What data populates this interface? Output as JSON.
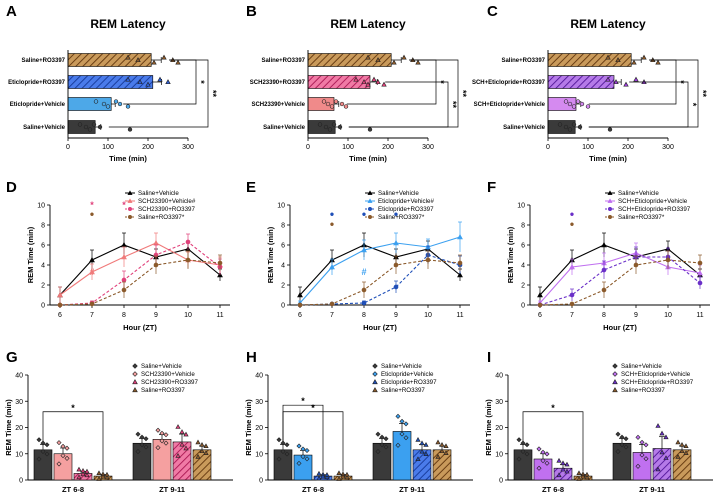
{
  "panel_letters": [
    "A",
    "B",
    "C",
    "D",
    "E",
    "F",
    "G",
    "H",
    "I"
  ],
  "chart_data": [
    {
      "panel": "A",
      "type": "bar",
      "orientation": "horizontal",
      "title": "REM Latency",
      "xlabel": "Time (min)",
      "xlim": [
        0,
        300
      ],
      "xticks": [
        0,
        100,
        200,
        300
      ],
      "categories": [
        "Saline+RO3397",
        "Eticlopride+RO3397",
        "Eticlopride+Vehicle",
        "Saline+Vehicle"
      ],
      "values": [
        208,
        212,
        108,
        68
      ],
      "errors": [
        25,
        22,
        10,
        14
      ],
      "colors": [
        "#8B5A2B",
        "#2E5FD8",
        "#4DA8E8",
        "#3a3a3a"
      ],
      "hatched": [
        true,
        true,
        false,
        false
      ],
      "points": [
        [
          150,
          175,
          215,
          240,
          262,
          275
        ],
        [
          150,
          180,
          200,
          230,
          250
        ],
        [
          70,
          90,
          100,
          120,
          130,
          150
        ],
        [
          30,
          45,
          55,
          65,
          80,
          155
        ]
      ],
      "significance": [
        [
          "Eticlopride+Vehicle",
          "Saline+RO3397",
          "*"
        ],
        [
          "Saline+Vehicle",
          "Saline+RO3397",
          "**"
        ]
      ]
    },
    {
      "panel": "B",
      "type": "bar",
      "orientation": "horizontal",
      "title": "REM Latency",
      "xlabel": "Time (min)",
      "xlim": [
        0,
        300
      ],
      "xticks": [
        0,
        100,
        200,
        300
      ],
      "categories": [
        "Saline+RO3397",
        "SCH23390+RO3397",
        "SCH23390+Vehicle",
        "Saline+Vehicle"
      ],
      "values": [
        208,
        155,
        65,
        68
      ],
      "errors": [
        25,
        18,
        12,
        14
      ],
      "colors": [
        "#8B5A2B",
        "#E0407A",
        "#F08A8A",
        "#3a3a3a"
      ],
      "hatched": [
        true,
        true,
        false,
        false
      ],
      "points": [
        [
          150,
          175,
          215,
          240,
          262,
          275
        ],
        [
          120,
          140,
          150,
          165,
          175,
          190
        ],
        [
          40,
          50,
          60,
          70,
          85,
          95
        ],
        [
          30,
          45,
          55,
          65,
          80,
          155
        ]
      ],
      "significance": [
        [
          "SCH23390+Vehicle",
          "Saline+RO3397",
          "*"
        ],
        [
          "SCH23390+RO3397",
          "Saline+Vehicle",
          "**"
        ],
        [
          "Saline+Vehicle",
          "Saline+RO3397",
          "**"
        ]
      ]
    },
    {
      "panel": "C",
      "type": "bar",
      "orientation": "horizontal",
      "title": "REM Latency",
      "xlabel": "Time (min)",
      "xlim": [
        0,
        300
      ],
      "xticks": [
        0,
        100,
        200,
        300
      ],
      "categories": [
        "Saline+RO3397",
        "SCH+Eticlopride+RO3397",
        "SCH+Eticlopride+Vehicle",
        "Saline+Vehicle"
      ],
      "values": [
        208,
        165,
        70,
        68
      ],
      "errors": [
        25,
        18,
        12,
        14
      ],
      "colors": [
        "#8B5A2B",
        "#9B3FD8",
        "#D58AF0",
        "#3a3a3a"
      ],
      "hatched": [
        true,
        true,
        false,
        false
      ],
      "points": [
        [
          150,
          175,
          215,
          240,
          262,
          275
        ],
        [
          150,
          170,
          195,
          220,
          240
        ],
        [
          45,
          55,
          65,
          75,
          85,
          100
        ],
        [
          30,
          45,
          55,
          65,
          80,
          155
        ]
      ],
      "significance": [
        [
          "SCH+Eticlopride+Vehicle",
          "Saline+RO3397",
          "*"
        ],
        [
          "SCH+Eticlopride+RO3397",
          "Saline+Vehicle",
          "*"
        ],
        [
          "Saline+Vehicle",
          "Saline+RO3397",
          "**"
        ]
      ]
    },
    {
      "panel": "D",
      "type": "line",
      "xlabel": "Hour (ZT)",
      "ylabel": "REM Time (min)",
      "x": [
        6,
        7,
        8,
        9,
        10,
        11
      ],
      "ylim": [
        0,
        10
      ],
      "yticks": [
        0,
        2,
        4,
        6,
        8,
        10
      ],
      "series": [
        {
          "name": "Saline+Vehicle",
          "color": "#000000",
          "marker": "triangle",
          "dashed": false,
          "values": [
            1.0,
            4.5,
            6.0,
            4.8,
            5.6,
            3.0
          ],
          "errors": [
            0.8,
            1.0,
            1.2,
            0.8,
            0.8,
            0.6
          ]
        },
        {
          "name": "SCH23390+Vehicle#",
          "color": "#F07A7A",
          "marker": "triangle",
          "dashed": false,
          "values": [
            1.0,
            3.3,
            4.8,
            6.2,
            4.5,
            4.0
          ],
          "errors": [
            0.8,
            0.8,
            1.0,
            1.0,
            0.8,
            0.8
          ]
        },
        {
          "name": "SCH23390+RO3397",
          "color": "#E0407A",
          "marker": "circle",
          "dashed": true,
          "values": [
            0.0,
            0.2,
            2.5,
            5.0,
            6.3,
            3.8
          ],
          "errors": [
            0.1,
            0.2,
            0.9,
            1.0,
            0.8,
            0.8
          ]
        },
        {
          "name": "Saline+RO3397*",
          "color": "#8B5A2B",
          "marker": "circle",
          "dashed": true,
          "values": [
            0.0,
            0.1,
            1.5,
            4.0,
            4.5,
            4.2
          ],
          "errors": [
            0.1,
            0.1,
            0.8,
            0.9,
            0.9,
            0.8
          ]
        }
      ],
      "annotations": [
        {
          "x": 7,
          "y": 10.0,
          "symbol": "*",
          "color": "#E0407A"
        },
        {
          "x": 8,
          "y": 10.0,
          "symbol": "*",
          "color": "#E0407A"
        },
        {
          "x": 7,
          "y": 9.0,
          "symbol": "•",
          "color": "#8B5A2B"
        },
        {
          "x": 7,
          "y": 3.3,
          "symbol": "#",
          "color": "#F07A7A"
        }
      ]
    },
    {
      "panel": "E",
      "type": "line",
      "xlabel": "Hour (ZT)",
      "ylabel": "REM Time (min)",
      "x": [
        6,
        7,
        8,
        9,
        10,
        11
      ],
      "ylim": [
        0,
        10
      ],
      "yticks": [
        0,
        2,
        4,
        6,
        8,
        10
      ],
      "series": [
        {
          "name": "Saline+Vehicle",
          "color": "#000000",
          "marker": "triangle",
          "dashed": false,
          "values": [
            1.0,
            4.5,
            6.0,
            4.8,
            5.6,
            3.0
          ],
          "errors": [
            0.8,
            1.0,
            1.2,
            0.8,
            0.8,
            0.6
          ]
        },
        {
          "name": "Eticlopride+Vehicle#",
          "color": "#3BA0F0",
          "marker": "triangle",
          "dashed": false,
          "values": [
            0.2,
            3.8,
            5.5,
            6.2,
            5.8,
            6.8
          ],
          "errors": [
            0.2,
            0.8,
            1.0,
            1.0,
            0.8,
            1.5
          ]
        },
        {
          "name": "Eticlopride+RO3397",
          "color": "#1F4FB8",
          "marker": "circle",
          "dashed": true,
          "values": [
            0.0,
            0.1,
            0.2,
            1.8,
            5.0,
            4.0
          ],
          "errors": [
            0.1,
            0.1,
            0.2,
            0.6,
            0.9,
            0.9
          ]
        },
        {
          "name": "Saline+RO3397*",
          "color": "#8B5A2B",
          "marker": "circle",
          "dashed": true,
          "values": [
            0.0,
            0.1,
            1.5,
            4.0,
            4.5,
            4.2
          ],
          "errors": [
            0.1,
            0.1,
            0.8,
            0.9,
            0.9,
            0.8
          ]
        }
      ],
      "annotations": [
        {
          "x": 7,
          "y": 9.0,
          "symbol": "•",
          "color": "#1F4FB8"
        },
        {
          "x": 8,
          "y": 9.0,
          "symbol": "•",
          "color": "#1F4FB8"
        },
        {
          "x": 9,
          "y": 9.0,
          "symbol": "•",
          "color": "#1F4FB8"
        },
        {
          "x": 7,
          "y": 8.0,
          "symbol": "•",
          "color": "#8B5A2B"
        },
        {
          "x": 8,
          "y": 3.3,
          "symbol": "#",
          "color": "#3BA0F0"
        }
      ]
    },
    {
      "panel": "F",
      "type": "line",
      "xlabel": "Hour (ZT)",
      "ylabel": "REM Time (min)",
      "x": [
        6,
        7,
        8,
        9,
        10,
        11
      ],
      "ylim": [
        0,
        10
      ],
      "yticks": [
        0,
        2,
        4,
        6,
        8,
        10
      ],
      "series": [
        {
          "name": "Saline+Vehicle",
          "color": "#000000",
          "marker": "triangle",
          "dashed": false,
          "values": [
            1.0,
            4.5,
            6.0,
            4.8,
            5.6,
            3.0
          ],
          "errors": [
            0.8,
            1.0,
            1.2,
            0.8,
            0.8,
            0.6
          ]
        },
        {
          "name": "SCH+Eticlopride+Vehicle",
          "color": "#C070F0",
          "marker": "triangle",
          "dashed": false,
          "values": [
            0.2,
            3.8,
            4.2,
            5.2,
            3.8,
            3.2
          ],
          "errors": [
            0.2,
            0.8,
            1.0,
            1.0,
            0.8,
            0.8
          ]
        },
        {
          "name": "SCH+Eticlopride+RO3397",
          "color": "#6A2FC8",
          "marker": "circle",
          "dashed": true,
          "values": [
            0.0,
            1.0,
            3.5,
            4.8,
            4.8,
            2.2
          ],
          "errors": [
            0.1,
            0.6,
            0.9,
            1.0,
            0.9,
            0.6
          ]
        },
        {
          "name": "Saline+RO3397*",
          "color": "#8B5A2B",
          "marker": "circle",
          "dashed": true,
          "values": [
            0.0,
            0.1,
            1.5,
            4.0,
            4.5,
            4.2
          ],
          "errors": [
            0.1,
            0.1,
            0.8,
            0.9,
            0.9,
            0.8
          ]
        }
      ],
      "annotations": [
        {
          "x": 7,
          "y": 9.0,
          "symbol": "•",
          "color": "#6A2FC8"
        },
        {
          "x": 7,
          "y": 8.0,
          "symbol": "•",
          "color": "#8B5A2B"
        }
      ]
    },
    {
      "panel": "G",
      "type": "bar",
      "ylabel": "REM Time (min)",
      "groups": [
        "ZT 6-8",
        "ZT 9-11"
      ],
      "ylim": [
        0,
        40
      ],
      "yticks": [
        0,
        10,
        20,
        30,
        40
      ],
      "series": [
        {
          "name": "Saline+Vehicle",
          "color": "#3a3a3a",
          "marker": "diamond",
          "hatched": false,
          "values": [
            11.5,
            14.0
          ],
          "errors": [
            2.0,
            1.8
          ]
        },
        {
          "name": "SCH23390+Vehicle",
          "color": "#F5A0A0",
          "marker": "diamond",
          "hatched": false,
          "values": [
            10.0,
            15.5
          ],
          "errors": [
            2.2,
            1.8
          ]
        },
        {
          "name": "SCH23390+RO3397",
          "color": "#E0407A",
          "marker": "triangle",
          "hatched": true,
          "values": [
            2.5,
            14.5
          ],
          "errors": [
            0.8,
            3.0
          ]
        },
        {
          "name": "Saline+RO3397",
          "color": "#8B5A2B",
          "marker": "triangle",
          "hatched": true,
          "values": [
            1.5,
            11.5
          ],
          "errors": [
            0.6,
            1.5
          ]
        }
      ],
      "significance": [
        [
          "ZT 6-8",
          "Saline+Vehicle",
          "Saline+RO3397",
          "*"
        ]
      ]
    },
    {
      "panel": "H",
      "type": "bar",
      "ylabel": "REM Time (min)",
      "groups": [
        "ZT 6-8",
        "ZT 9-11"
      ],
      "ylim": [
        0,
        40
      ],
      "yticks": [
        0,
        10,
        20,
        30,
        40
      ],
      "series": [
        {
          "name": "Saline+Vehicle",
          "color": "#3a3a3a",
          "marker": "diamond",
          "hatched": false,
          "values": [
            11.5,
            14.0
          ],
          "errors": [
            2.0,
            1.8
          ]
        },
        {
          "name": "Eticlopride+Vehicle",
          "color": "#3BA0F0",
          "marker": "diamond",
          "hatched": false,
          "values": [
            9.5,
            18.5
          ],
          "errors": [
            1.8,
            3.0
          ]
        },
        {
          "name": "Eticlopride+RO3397",
          "color": "#1F4FB8",
          "marker": "triangle",
          "hatched": true,
          "values": [
            1.5,
            11.5
          ],
          "errors": [
            0.5,
            2.0
          ]
        },
        {
          "name": "Saline+RO3397",
          "color": "#8B5A2B",
          "marker": "triangle",
          "hatched": true,
          "values": [
            1.5,
            11.5
          ],
          "errors": [
            0.6,
            1.5
          ]
        }
      ],
      "significance": [
        [
          "ZT 6-8",
          "Saline+Vehicle",
          "Saline+RO3397",
          "*"
        ],
        [
          "ZT 6-8",
          "Saline+Vehicle",
          "Eticlopride+RO3397",
          "*"
        ]
      ]
    },
    {
      "panel": "I",
      "type": "bar",
      "ylabel": "REM Time (min)",
      "groups": [
        "ZT 6-8",
        "ZT 9-11"
      ],
      "ylim": [
        0,
        40
      ],
      "yticks": [
        0,
        10,
        20,
        30,
        40
      ],
      "series": [
        {
          "name": "Saline+Vehicle",
          "color": "#3a3a3a",
          "marker": "diamond",
          "hatched": false,
          "values": [
            11.5,
            14.0
          ],
          "errors": [
            2.0,
            1.8
          ]
        },
        {
          "name": "SCH+Eticlopride+Vehicle",
          "color": "#C070F0",
          "marker": "diamond",
          "hatched": false,
          "values": [
            8.0,
            10.5
          ],
          "errors": [
            2.0,
            3.0
          ]
        },
        {
          "name": "SCH+Eticlopride+RO3397",
          "color": "#6A2FC8",
          "marker": "triangle",
          "hatched": true,
          "values": [
            4.5,
            12.0
          ],
          "errors": [
            1.5,
            4.5
          ]
        },
        {
          "name": "Saline+RO3397",
          "color": "#8B5A2B",
          "marker": "triangle",
          "hatched": true,
          "values": [
            1.5,
            11.5
          ],
          "errors": [
            0.6,
            1.5
          ]
        }
      ],
      "significance": [
        [
          "ZT 6-8",
          "Saline+Vehicle",
          "Saline+RO3397",
          "*"
        ]
      ]
    }
  ]
}
